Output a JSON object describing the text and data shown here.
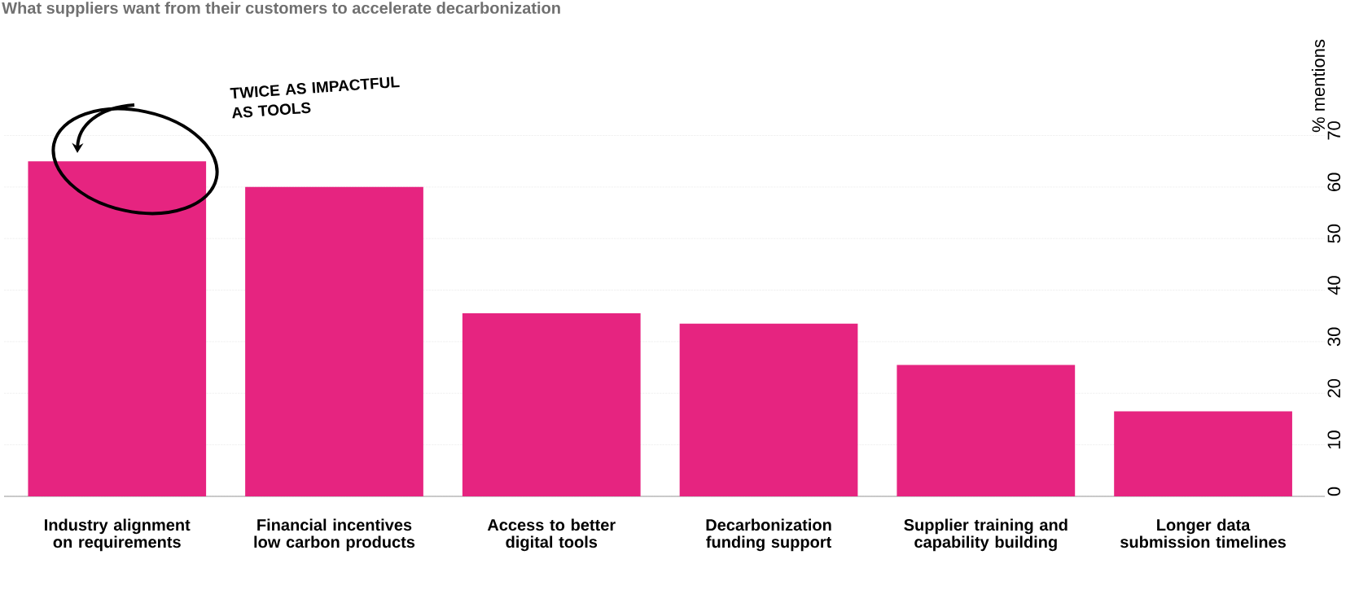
{
  "chart_data": {
    "type": "bar",
    "title": "What suppliers want from their customers to accelerate decarbonization",
    "ylabel": "% mentions",
    "categories": [
      "Industry alignment on requirements",
      "Financial incentives low carbon products",
      "Access to better digital tools",
      "Decarbonization funding support",
      "Supplier training and capability building",
      "Longer data submission timelines"
    ],
    "values": [
      65,
      60,
      35.5,
      33.5,
      25.5,
      16.5
    ],
    "color": "#e62480",
    "ylim": [
      0,
      70
    ],
    "yticks": [
      0,
      10,
      20,
      30,
      40,
      50,
      60,
      70
    ],
    "grid": "y",
    "annotations": [
      "TWICE AS IMPACTFUL AS TOOLS"
    ]
  }
}
